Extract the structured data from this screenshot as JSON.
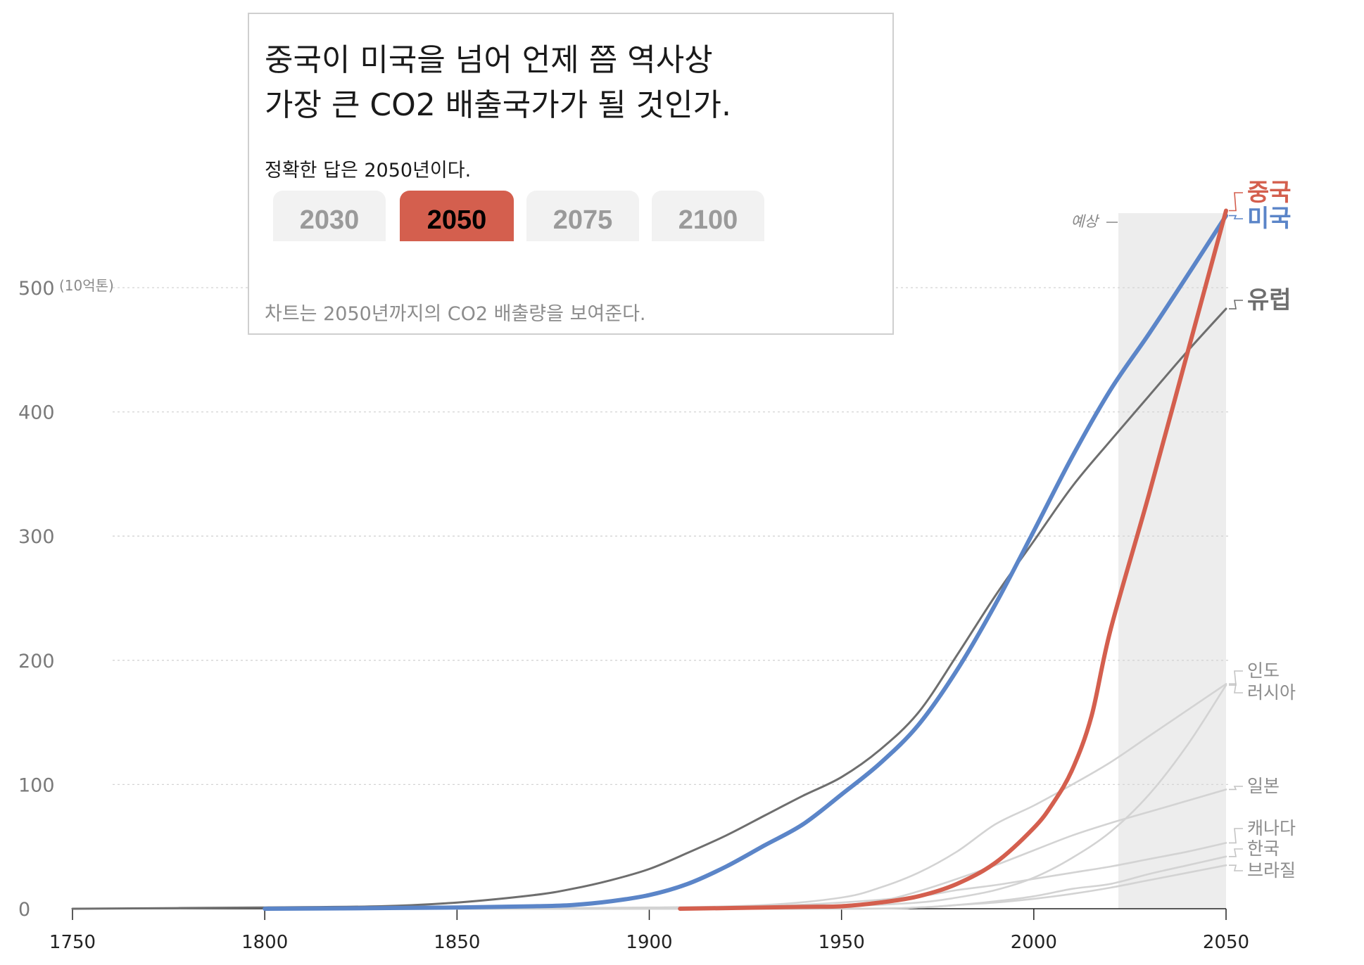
{
  "quiz": {
    "title_line1": "중국이 미국을 넘어 언제 쯤 역사상",
    "title_line2": "가장 큰 CO2 배출국가가 될 것인가.",
    "answer": "정확한 답은 2050년이다.",
    "options": [
      "2030",
      "2050",
      "2075",
      "2100"
    ],
    "selected": "2050",
    "note": "차트는  2050년까지의 CO2 배출량을 보여준다."
  },
  "chart_data": {
    "type": "line",
    "title": "중국이 미국을 넘어 언제 쯤 역사상 가장 큰 CO2 배출국가가 될 것인가.",
    "ylabel_unit": "(10억톤)",
    "xlim": [
      1750,
      2050
    ],
    "ylim": [
      0,
      560
    ],
    "x_ticks": [
      1750,
      1800,
      1850,
      1900,
      1950,
      2000,
      2050
    ],
    "y_ticks": [
      0,
      100,
      200,
      300,
      400,
      500
    ],
    "projection": {
      "label": "예상",
      "from": 2022,
      "to": 2050
    },
    "colors": {
      "china": "#d45f4e",
      "usa": "#5b85c8",
      "europe": "#6e6e6e",
      "other": "#d3d3d3"
    },
    "series": [
      {
        "name": "유럽",
        "key": "europe",
        "emphasis": "medium",
        "points": [
          [
            1750,
            0
          ],
          [
            1800,
            1
          ],
          [
            1830,
            2
          ],
          [
            1850,
            5
          ],
          [
            1870,
            11
          ],
          [
            1880,
            16
          ],
          [
            1890,
            23
          ],
          [
            1900,
            32
          ],
          [
            1910,
            45
          ],
          [
            1920,
            59
          ],
          [
            1930,
            75
          ],
          [
            1940,
            91
          ],
          [
            1950,
            106
          ],
          [
            1960,
            128
          ],
          [
            1970,
            158
          ],
          [
            1980,
            204
          ],
          [
            1990,
            252
          ],
          [
            2000,
            296
          ],
          [
            2010,
            340
          ],
          [
            2020,
            377
          ],
          [
            2030,
            413
          ],
          [
            2040,
            449
          ],
          [
            2050,
            483
          ]
        ]
      },
      {
        "name": "인도",
        "key": "india",
        "emphasis": "minor",
        "points": [
          [
            1850,
            0
          ],
          [
            1900,
            0
          ],
          [
            1930,
            1
          ],
          [
            1950,
            2
          ],
          [
            1970,
            5
          ],
          [
            1980,
            9
          ],
          [
            1990,
            15
          ],
          [
            2000,
            25
          ],
          [
            2010,
            41
          ],
          [
            2020,
            62
          ],
          [
            2030,
            92
          ],
          [
            2040,
            132
          ],
          [
            2050,
            180
          ]
        ]
      },
      {
        "name": "러시아",
        "key": "russia",
        "emphasis": "minor",
        "points": [
          [
            1850,
            0
          ],
          [
            1900,
            1
          ],
          [
            1930,
            3
          ],
          [
            1950,
            9
          ],
          [
            1960,
            17
          ],
          [
            1970,
            29
          ],
          [
            1980,
            46
          ],
          [
            1990,
            68
          ],
          [
            2000,
            83
          ],
          [
            2010,
            100
          ],
          [
            2020,
            118
          ],
          [
            2030,
            139
          ],
          [
            2040,
            160
          ],
          [
            2050,
            181
          ]
        ]
      },
      {
        "name": "일본",
        "key": "japan",
        "emphasis": "minor",
        "points": [
          [
            1850,
            0
          ],
          [
            1900,
            0
          ],
          [
            1930,
            1
          ],
          [
            1950,
            3
          ],
          [
            1960,
            6
          ],
          [
            1970,
            14
          ],
          [
            1980,
            24
          ],
          [
            1990,
            35
          ],
          [
            2000,
            47
          ],
          [
            2010,
            59
          ],
          [
            2020,
            69
          ],
          [
            2030,
            78
          ],
          [
            2040,
            87
          ],
          [
            2050,
            96
          ]
        ]
      },
      {
        "name": "캐나다",
        "key": "canada",
        "emphasis": "minor",
        "points": [
          [
            1850,
            0
          ],
          [
            1900,
            0
          ],
          [
            1930,
            2
          ],
          [
            1950,
            5
          ],
          [
            1970,
            10
          ],
          [
            1980,
            15
          ],
          [
            1990,
            19
          ],
          [
            2000,
            24
          ],
          [
            2010,
            29
          ],
          [
            2020,
            34
          ],
          [
            2030,
            40
          ],
          [
            2040,
            46
          ],
          [
            2050,
            53
          ]
        ]
      },
      {
        "name": "한국",
        "key": "korea",
        "emphasis": "minor",
        "points": [
          [
            1850,
            0
          ],
          [
            1950,
            0
          ],
          [
            1970,
            1
          ],
          [
            1980,
            3
          ],
          [
            1990,
            6
          ],
          [
            2000,
            10
          ],
          [
            2010,
            16
          ],
          [
            2020,
            20
          ],
          [
            2030,
            28
          ],
          [
            2040,
            35
          ],
          [
            2050,
            42
          ]
        ]
      },
      {
        "name": "브라질",
        "key": "brazil",
        "emphasis": "minor",
        "points": [
          [
            1850,
            0
          ],
          [
            1950,
            0
          ],
          [
            1970,
            1
          ],
          [
            1980,
            3
          ],
          [
            1990,
            5
          ],
          [
            2000,
            8
          ],
          [
            2010,
            12
          ],
          [
            2020,
            17
          ],
          [
            2030,
            23
          ],
          [
            2040,
            29
          ],
          [
            2050,
            35
          ]
        ]
      },
      {
        "name": "미국",
        "key": "usa",
        "emphasis": "major",
        "points": [
          [
            1800,
            0
          ],
          [
            1820,
            0.3
          ],
          [
            1850,
            1
          ],
          [
            1870,
            2
          ],
          [
            1880,
            3
          ],
          [
            1890,
            6
          ],
          [
            1900,
            11
          ],
          [
            1910,
            20
          ],
          [
            1920,
            34
          ],
          [
            1930,
            51
          ],
          [
            1940,
            68
          ],
          [
            1950,
            92
          ],
          [
            1960,
            117
          ],
          [
            1970,
            148
          ],
          [
            1980,
            192
          ],
          [
            1990,
            245
          ],
          [
            2000,
            304
          ],
          [
            2010,
            364
          ],
          [
            2020,
            418
          ],
          [
            2030,
            463
          ],
          [
            2040,
            510
          ],
          [
            2050,
            558
          ]
        ]
      },
      {
        "name": "중국",
        "key": "china",
        "emphasis": "major",
        "points": [
          [
            1908,
            0
          ],
          [
            1920,
            0.5
          ],
          [
            1940,
            1.5
          ],
          [
            1950,
            2
          ],
          [
            1960,
            5
          ],
          [
            1970,
            10
          ],
          [
            1980,
            20
          ],
          [
            1990,
            37
          ],
          [
            2000,
            65
          ],
          [
            2005,
            85
          ],
          [
            2010,
            112
          ],
          [
            2015,
            155
          ],
          [
            2020,
            225
          ],
          [
            2030,
            334
          ],
          [
            2040,
            448
          ],
          [
            2050,
            562
          ]
        ]
      }
    ],
    "labels": [
      {
        "key": "china",
        "text": "중국",
        "x": 2050,
        "y": 562
      },
      {
        "key": "usa",
        "text": "미국",
        "x": 2050,
        "y": 558
      },
      {
        "key": "europe",
        "text": "유럽",
        "x": 2050,
        "y": 483
      },
      {
        "key": "india",
        "text": "인도",
        "x": 2050,
        "y": 180
      },
      {
        "key": "russia",
        "text": "러시아",
        "x": 2050,
        "y": 181
      },
      {
        "key": "japan",
        "text": "일본",
        "x": 2050,
        "y": 96
      },
      {
        "key": "canada",
        "text": "캐나다",
        "x": 2050,
        "y": 53
      },
      {
        "key": "korea",
        "text": "한국",
        "x": 2050,
        "y": 42
      },
      {
        "key": "brazil",
        "text": "브라질",
        "x": 2050,
        "y": 35
      }
    ]
  }
}
